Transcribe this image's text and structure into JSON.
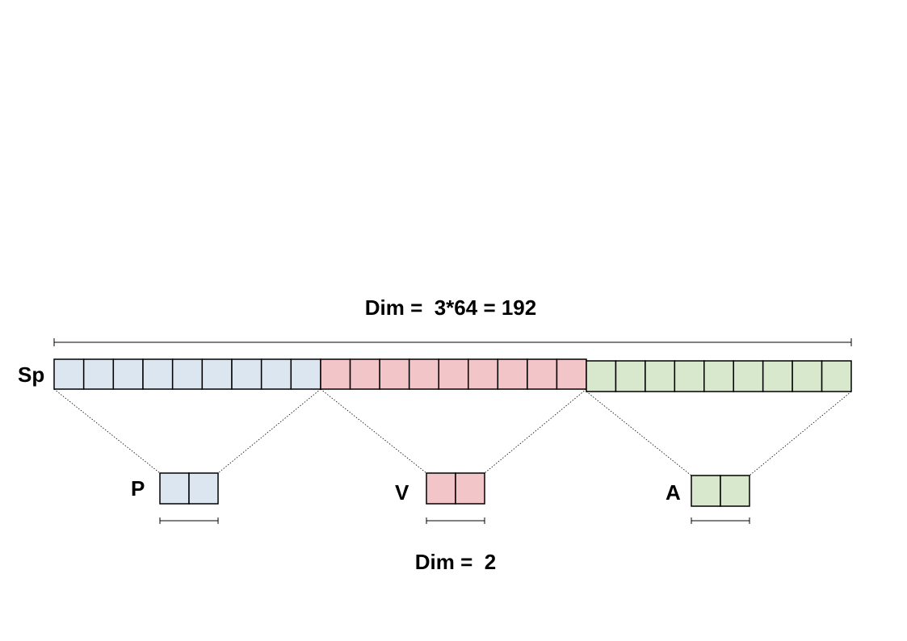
{
  "top_dim_label": "Dim =  3*64 = 192",
  "bottom_dim_label": "Dim =  2",
  "main_row_label": "Sp",
  "colors": {
    "blue": "#dce6f1",
    "red": "#f2c5c8",
    "green": "#d8e8cc",
    "stroke": "#000000"
  },
  "segments": [
    {
      "key": "p",
      "color_key": "blue",
      "cells": 9
    },
    {
      "key": "v",
      "color_key": "red",
      "cells": 9
    },
    {
      "key": "a",
      "color_key": "green",
      "cells": 9
    }
  ],
  "sub_blocks": [
    {
      "key": "p",
      "label": "P",
      "color_key": "blue",
      "cells": 2
    },
    {
      "key": "v",
      "label": "V",
      "color_key": "red",
      "cells": 2
    },
    {
      "key": "a",
      "label": "A",
      "color_key": "green",
      "cells": 2
    }
  ]
}
